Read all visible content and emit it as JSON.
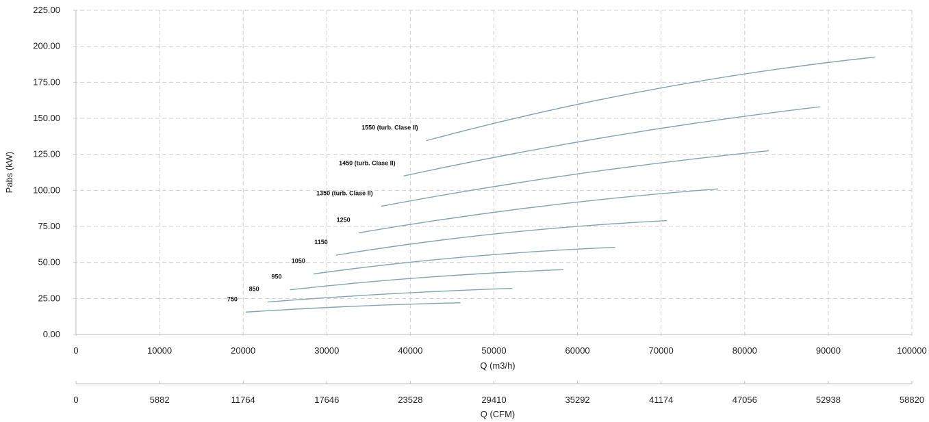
{
  "chart_data": {
    "type": "line",
    "xlabel": "Q (m3/h)",
    "ylabel": "Pabs (kW)",
    "secondary_xlabel": "Q (CFM)",
    "xlim": [
      0,
      100000
    ],
    "ylim": [
      0,
      225
    ],
    "x_ticks": [
      "0",
      "10000",
      "20000",
      "30000",
      "40000",
      "50000",
      "60000",
      "70000",
      "80000",
      "90000",
      "100000"
    ],
    "y_ticks": [
      "0.00",
      "25.00",
      "50.00",
      "75.00",
      "100.00",
      "125.00",
      "150.00",
      "175.00",
      "200.00",
      "225.00"
    ],
    "secondary_x_ticks": [
      "0",
      "5882",
      "11764",
      "17646",
      "23528",
      "29410",
      "35292",
      "41174",
      "47056",
      "52938",
      "58820"
    ],
    "grid": true,
    "series": [
      {
        "name": "750",
        "x": [
          20300,
          33000,
          46000
        ],
        "y": [
          15.5,
          19.5,
          22.0
        ]
      },
      {
        "name": "850",
        "x": [
          22900,
          37000,
          52200
        ],
        "y": [
          22.5,
          28.0,
          32.0
        ]
      },
      {
        "name": "950",
        "x": [
          25600,
          41500,
          58300
        ],
        "y": [
          31.0,
          39.5,
          45.0
        ]
      },
      {
        "name": "1050",
        "x": [
          28400,
          46000,
          64500
        ],
        "y": [
          42.0,
          53.5,
          60.5
        ]
      },
      {
        "name": "1150",
        "x": [
          31100,
          50500,
          70700
        ],
        "y": [
          55.0,
          70.0,
          79.0
        ]
      },
      {
        "name": "1250",
        "x": [
          33800,
          55000,
          76800
        ],
        "y": [
          70.5,
          88.5,
          101.0
        ]
      },
      {
        "name": "1350 (turb. Clase II)",
        "x": [
          36500,
          59500,
          82900
        ],
        "y": [
          89.0,
          111.0,
          127.5
        ]
      },
      {
        "name": "1450 (turb. Clase II)",
        "x": [
          39200,
          64000,
          89000
        ],
        "y": [
          110.0,
          137.5,
          158.0
        ]
      },
      {
        "name": "1550 (turb. Clase II)",
        "x": [
          41900,
          68500,
          95600
        ],
        "y": [
          134.5,
          169.5,
          192.5
        ]
      }
    ]
  }
}
